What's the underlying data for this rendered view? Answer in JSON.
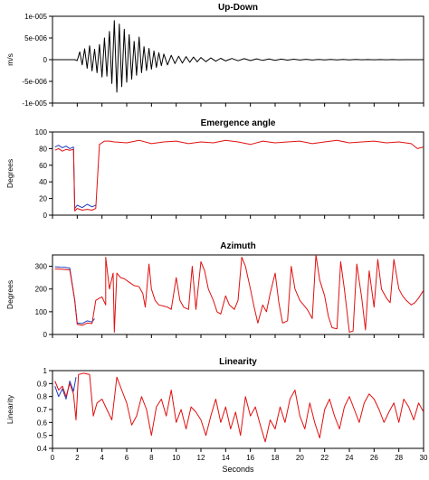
{
  "x_axis": {
    "label": "Seconds",
    "range": [
      0,
      30
    ],
    "ticks": [
      0,
      2,
      4,
      6,
      8,
      10,
      12,
      14,
      16,
      18,
      20,
      22,
      24,
      26,
      28,
      30
    ],
    "tick_labels": [
      "0",
      "2",
      "4",
      "6",
      "8",
      "10",
      "12",
      "14",
      "16",
      "18",
      "20",
      "22",
      "24",
      "26",
      "28",
      "30"
    ]
  },
  "chart_data": [
    {
      "type": "line",
      "title": "Up-Down",
      "ylabel": "m/s",
      "ylim": [
        -1e-05,
        1e-05
      ],
      "yticks": [
        -1e-05,
        -5e-06,
        0,
        5e-06,
        1e-05
      ],
      "ytick_labels": [
        "-1e-005",
        "-5e-006",
        "0",
        "5e-006",
        "1e-005"
      ],
      "series": [
        {
          "color": "#000000",
          "x": [
            0,
            0.5,
            1,
            1.5,
            1.8,
            2.0,
            2.2,
            2.4,
            2.6,
            2.8,
            3.0,
            3.2,
            3.4,
            3.6,
            3.8,
            4.0,
            4.2,
            4.4,
            4.6,
            4.8,
            5.0,
            5.2,
            5.4,
            5.6,
            5.8,
            6.0,
            6.2,
            6.4,
            6.6,
            6.8,
            7.0,
            7.2,
            7.4,
            7.6,
            7.8,
            8.0,
            8.2,
            8.4,
            8.6,
            8.8,
            9.0,
            9.3,
            9.6,
            9.9,
            10.2,
            10.5,
            10.8,
            11.1,
            11.4,
            11.7,
            12.0,
            12.4,
            12.8,
            13.2,
            13.6,
            14.0,
            14.5,
            15.0,
            15.5,
            16.0,
            16.5,
            17.0,
            17.5,
            18.0,
            18.5,
            19.0,
            19.5,
            20.0,
            20.5,
            21.0,
            21.5,
            22.0,
            22.5,
            23.0,
            23.5,
            24.0,
            24.5,
            25.0,
            25.5,
            26.0,
            26.5,
            27.0,
            27.5,
            28.0,
            28.5,
            29.0,
            29.5,
            30.0
          ],
          "y": [
            0,
            0,
            0,
            0,
            0,
            -2e-07,
            1.8e-06,
            -1.2e-06,
            2.5e-06,
            -2e-06,
            3.2e-06,
            -2.6e-06,
            2.4e-06,
            -3e-06,
            3.5e-06,
            -4e-06,
            5e-06,
            -3.8e-06,
            6.5e-06,
            -5.5e-06,
            9e-06,
            -7.5e-06,
            8.2e-06,
            -6.2e-06,
            7e-06,
            -5.2e-06,
            5.8e-06,
            -4.5e-06,
            4.2e-06,
            -3.6e-06,
            5.2e-06,
            -3e-06,
            3e-06,
            -2.5e-06,
            2.6e-06,
            -2.2e-06,
            2e-06,
            -1.8e-06,
            1.6e-06,
            -1.4e-06,
            1.3e-06,
            -1.2e-06,
            1e-06,
            -9e-07,
            8e-07,
            -8e-07,
            7e-07,
            -6e-07,
            6e-07,
            -5e-07,
            5e-07,
            -4.5e-07,
            4e-07,
            -3.5e-07,
            3.2e-07,
            -3e-07,
            2.8e-07,
            -2.5e-07,
            2.2e-07,
            -2e-07,
            1.8e-07,
            -1.6e-07,
            1.5e-07,
            -1.4e-07,
            1.2e-07,
            -1.1e-07,
            1e-07,
            -9e-08,
            8e-08,
            -8e-08,
            7e-08,
            -6e-08,
            6e-08,
            -5e-08,
            5e-08,
            -4e-08,
            4e-08,
            -3e-08,
            3e-08,
            -3e-08,
            2e-08,
            -2e-08,
            2e-08,
            -2e-08,
            1e-08,
            -1e-08,
            1e-08,
            0
          ]
        }
      ]
    },
    {
      "type": "line",
      "title": "Emergence angle",
      "ylabel": "Degrees",
      "ylim": [
        0,
        100
      ],
      "yticks": [
        0,
        20,
        40,
        60,
        80,
        100
      ],
      "ytick_labels": [
        "0",
        "20",
        "40",
        "60",
        "80",
        "100"
      ],
      "series": [
        {
          "color": "#1f3fbf",
          "x": [
            0.2,
            0.5,
            0.8,
            1.1,
            1.4,
            1.7,
            1.8,
            2.0,
            2.4,
            2.8,
            3.2,
            3.5
          ],
          "y": [
            82,
            84,
            81,
            83,
            80,
            82,
            8,
            12,
            9,
            13,
            10,
            12
          ]
        },
        {
          "color": "#e01010",
          "x": [
            0.2,
            0.5,
            0.8,
            1.1,
            1.4,
            1.7,
            1.8,
            2.0,
            2.4,
            2.8,
            3.2,
            3.5,
            3.8,
            4.2,
            4.6,
            5.0,
            6,
            7,
            8,
            9,
            10,
            11,
            12,
            13,
            14,
            15,
            16,
            17,
            18,
            19,
            20,
            21,
            22,
            23,
            24,
            25,
            26,
            27,
            28,
            29,
            29.5,
            30
          ],
          "y": [
            78,
            80,
            77,
            79,
            78,
            79,
            5,
            8,
            6,
            7,
            6,
            8,
            85,
            89,
            89,
            88,
            87,
            90,
            86,
            88,
            89,
            86,
            88,
            87,
            90,
            88,
            85,
            89,
            87,
            88,
            89,
            86,
            88,
            90,
            87,
            88,
            89,
            87,
            88,
            86,
            80,
            82
          ]
        }
      ]
    },
    {
      "type": "line",
      "title": "Azimuth",
      "ylabel": "Degrees",
      "ylim": [
        0,
        350
      ],
      "yticks": [
        0,
        100,
        200,
        300
      ],
      "ytick_labels": [
        "0",
        "100",
        "200",
        "300"
      ],
      "series": [
        {
          "color": "#1f3fbf",
          "x": [
            0.2,
            0.6,
            1.0,
            1.4,
            1.8,
            2.0,
            2.4,
            2.8,
            3.2,
            3.4
          ],
          "y": [
            298,
            296,
            295,
            292,
            150,
            50,
            48,
            60,
            55,
            70
          ]
        },
        {
          "color": "#e01010",
          "x": [
            0.2,
            0.6,
            1.0,
            1.4,
            1.8,
            2.0,
            2.4,
            2.8,
            3.2,
            3.5,
            3.8,
            4.0,
            4.3,
            4.3,
            4.6,
            4.9,
            5.0,
            5.2,
            5.5,
            5.8,
            6.2,
            6.6,
            7.0,
            7.3,
            7.5,
            7.8,
            8.0,
            8.3,
            8.6,
            9.0,
            9.3,
            9.6,
            10.0,
            10.3,
            10.6,
            11.0,
            11.3,
            11.6,
            12.0,
            12.3,
            12.6,
            13.0,
            13.3,
            13.6,
            14.0,
            14.3,
            14.7,
            15.0,
            15.3,
            15.6,
            16.0,
            16.3,
            16.6,
            17.0,
            17.3,
            17.6,
            18.0,
            18.3,
            18.6,
            19.0,
            19.3,
            19.6,
            20.0,
            20.3,
            20.6,
            21.0,
            21.3,
            21.6,
            22.0,
            22.3,
            22.6,
            23.0,
            23.3,
            23.6,
            24.0,
            24.3,
            24.6,
            25.0,
            25.3,
            25.6,
            26.0,
            26.3,
            26.6,
            27.0,
            27.3,
            27.6,
            28.0,
            28.3,
            28.6,
            29.0,
            29.3,
            29.6,
            30.0
          ],
          "y": [
            288,
            287,
            286,
            284,
            150,
            45,
            40,
            50,
            48,
            150,
            160,
            165,
            130,
            340,
            200,
            270,
            10,
            270,
            250,
            245,
            230,
            215,
            210,
            180,
            120,
            310,
            200,
            150,
            130,
            125,
            120,
            110,
            250,
            150,
            120,
            110,
            300,
            110,
            320,
            280,
            200,
            150,
            100,
            90,
            170,
            130,
            110,
            150,
            340,
            300,
            200,
            120,
            50,
            130,
            100,
            180,
            270,
            140,
            50,
            60,
            300,
            200,
            150,
            130,
            110,
            70,
            350,
            240,
            170,
            80,
            30,
            25,
            320,
            200,
            10,
            15,
            310,
            160,
            20,
            280,
            120,
            330,
            200,
            160,
            140,
            330,
            200,
            170,
            150,
            130,
            140,
            160,
            195
          ]
        }
      ]
    },
    {
      "type": "line",
      "title": "Linearity",
      "ylabel": "Linearity",
      "ylim": [
        0.4,
        1.0
      ],
      "yticks": [
        0.4,
        0.5,
        0.6,
        0.7,
        0.8,
        0.9,
        1.0
      ],
      "ytick_labels": [
        "0.4",
        "0.5",
        "0.6",
        "0.7",
        "0.8",
        "0.9",
        "1"
      ],
      "series": [
        {
          "color": "#1f3fbf",
          "x": [
            0.2,
            0.5,
            0.8,
            1.1,
            1.4,
            1.7,
            1.9
          ],
          "y": [
            0.88,
            0.8,
            0.86,
            0.78,
            0.92,
            0.84,
            0.95
          ]
        },
        {
          "color": "#e01010",
          "x": [
            0.2,
            0.5,
            0.8,
            1.1,
            1.4,
            1.7,
            1.9,
            2.1,
            2.5,
            3.0,
            3.3,
            3.6,
            4.0,
            4.4,
            4.8,
            5.2,
            5.6,
            6.0,
            6.4,
            6.8,
            7.2,
            7.6,
            8.0,
            8.4,
            8.8,
            9.2,
            9.6,
            10.0,
            10.4,
            10.8,
            11.2,
            11.6,
            12.0,
            12.4,
            12.8,
            13.2,
            13.6,
            14.0,
            14.4,
            14.8,
            15.2,
            15.6,
            16.0,
            16.4,
            16.8,
            17.2,
            17.6,
            18.0,
            18.4,
            18.8,
            19.2,
            19.6,
            20.0,
            20.4,
            20.8,
            21.2,
            21.6,
            22.0,
            22.4,
            22.8,
            23.2,
            23.6,
            24.0,
            24.4,
            24.8,
            25.2,
            25.6,
            26.0,
            26.4,
            26.8,
            27.2,
            27.6,
            28.0,
            28.4,
            28.8,
            29.2,
            29.6,
            30.0
          ],
          "y": [
            0.92,
            0.85,
            0.88,
            0.8,
            0.9,
            0.82,
            0.62,
            0.97,
            0.98,
            0.97,
            0.65,
            0.75,
            0.78,
            0.7,
            0.62,
            0.95,
            0.85,
            0.75,
            0.58,
            0.65,
            0.8,
            0.7,
            0.5,
            0.72,
            0.78,
            0.65,
            0.85,
            0.6,
            0.7,
            0.55,
            0.72,
            0.68,
            0.62,
            0.5,
            0.65,
            0.78,
            0.6,
            0.72,
            0.55,
            0.68,
            0.5,
            0.8,
            0.65,
            0.72,
            0.58,
            0.45,
            0.62,
            0.55,
            0.72,
            0.6,
            0.78,
            0.85,
            0.65,
            0.55,
            0.75,
            0.6,
            0.48,
            0.7,
            0.78,
            0.65,
            0.55,
            0.72,
            0.8,
            0.7,
            0.6,
            0.75,
            0.82,
            0.78,
            0.7,
            0.6,
            0.68,
            0.75,
            0.6,
            0.78,
            0.72,
            0.62,
            0.75,
            0.68
          ]
        }
      ]
    }
  ]
}
